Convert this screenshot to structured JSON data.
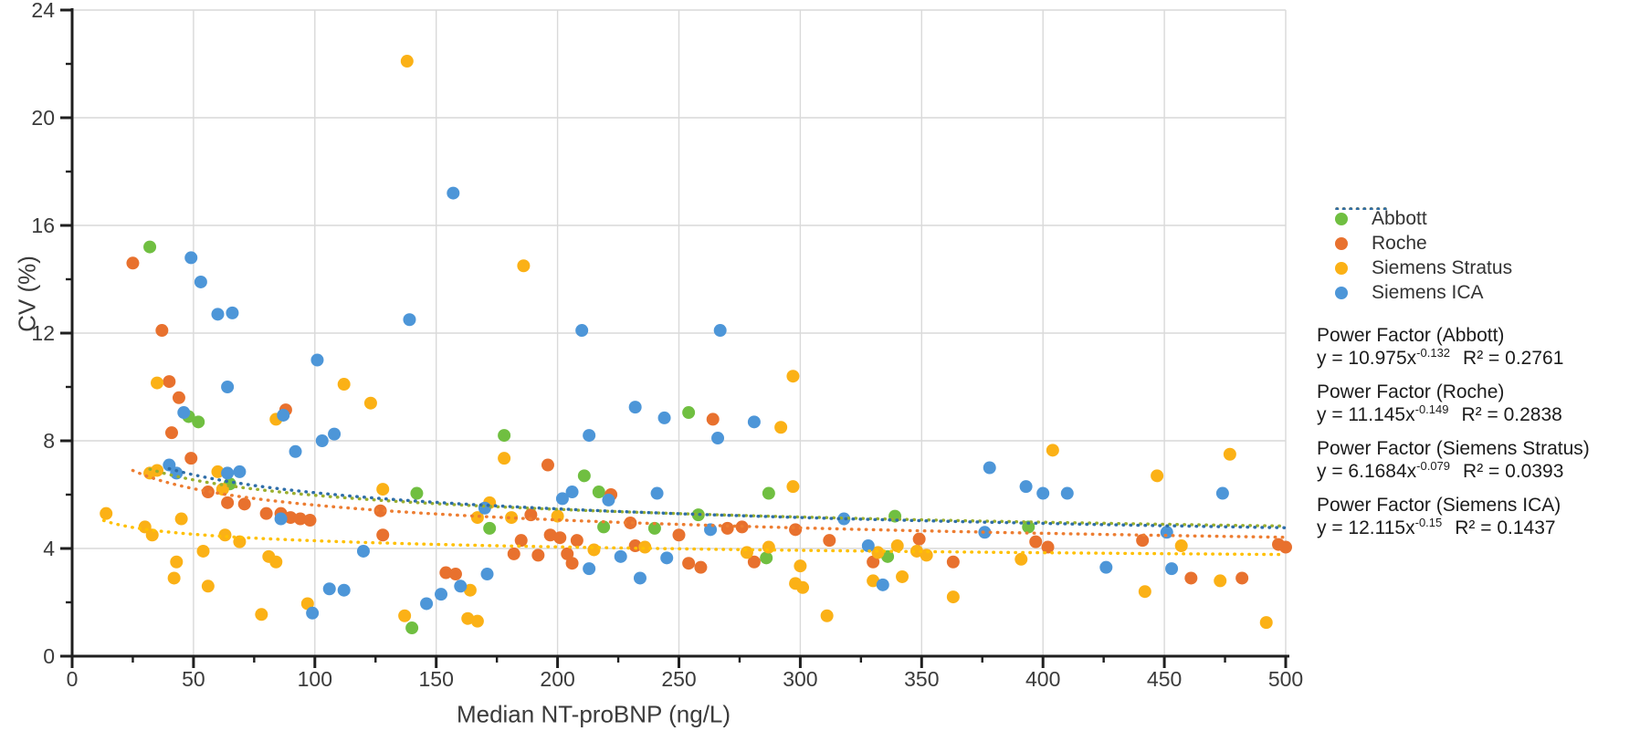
{
  "chart_data": {
    "type": "scatter",
    "title": "",
    "xlabel": "Median NT-proBNP (ng/L)",
    "ylabel": "CV (%)",
    "xlim": [
      0,
      500
    ],
    "ylim": [
      0,
      24
    ],
    "x_major_ticks": [
      0,
      50,
      100,
      150,
      200,
      250,
      300,
      350,
      400,
      450,
      500
    ],
    "x_minor_step": 25,
    "y_major_ticks": [
      0,
      4,
      8,
      12,
      16,
      20,
      24
    ],
    "y_minor_step": 2,
    "grid": true,
    "legend_position": "right",
    "colors": {
      "grid": "#d9d9d9",
      "axis": "#1f1f1f",
      "tick_text": "#3b3b3b"
    },
    "series": [
      {
        "name": "Abbott",
        "color": "#70BF41",
        "points": [
          [
            32,
            15.2
          ],
          [
            48,
            8.9
          ],
          [
            52,
            8.7
          ],
          [
            65,
            6.4
          ],
          [
            140,
            1.05
          ],
          [
            142,
            6.05
          ],
          [
            172,
            4.75
          ],
          [
            178,
            8.2
          ],
          [
            211,
            6.7
          ],
          [
            217,
            6.1
          ],
          [
            219,
            4.8
          ],
          [
            240,
            4.75
          ],
          [
            254,
            9.05
          ],
          [
            258,
            5.25
          ],
          [
            286,
            3.65
          ],
          [
            287,
            6.05
          ],
          [
            336,
            3.7
          ],
          [
            339,
            5.2
          ],
          [
            394,
            4.8
          ]
        ]
      },
      {
        "name": "Roche",
        "color": "#E8712E",
        "points": [
          [
            25,
            14.6
          ],
          [
            37,
            12.1
          ],
          [
            40,
            10.2
          ],
          [
            41,
            8.3
          ],
          [
            44,
            9.6
          ],
          [
            49,
            7.35
          ],
          [
            56,
            6.1
          ],
          [
            64,
            5.7
          ],
          [
            71,
            5.65
          ],
          [
            80,
            5.3
          ],
          [
            86,
            5.3
          ],
          [
            88,
            9.15
          ],
          [
            90,
            5.15
          ],
          [
            94,
            5.1
          ],
          [
            98,
            5.05
          ],
          [
            127,
            5.4
          ],
          [
            128,
            4.5
          ],
          [
            154,
            3.1
          ],
          [
            158,
            3.05
          ],
          [
            182,
            3.8
          ],
          [
            185,
            4.3
          ],
          [
            189,
            5.25
          ],
          [
            192,
            3.75
          ],
          [
            196,
            7.1
          ],
          [
            197,
            4.5
          ],
          [
            201,
            4.4
          ],
          [
            204,
            3.8
          ],
          [
            206,
            3.45
          ],
          [
            208,
            4.3
          ],
          [
            222,
            6.0
          ],
          [
            230,
            4.95
          ],
          [
            232,
            4.1
          ],
          [
            250,
            4.5
          ],
          [
            254,
            3.45
          ],
          [
            259,
            3.3
          ],
          [
            264,
            8.8
          ],
          [
            270,
            4.75
          ],
          [
            276,
            4.8
          ],
          [
            281,
            3.5
          ],
          [
            298,
            4.7
          ],
          [
            312,
            4.3
          ],
          [
            330,
            3.5
          ],
          [
            349,
            4.35
          ],
          [
            363,
            3.5
          ],
          [
            397,
            4.25
          ],
          [
            402,
            4.05
          ],
          [
            441,
            4.3
          ],
          [
            461,
            2.9
          ],
          [
            482,
            2.9
          ],
          [
            497,
            4.15
          ],
          [
            500,
            4.05
          ]
        ]
      },
      {
        "name": "Siemens Stratus",
        "color": "#FBB116",
        "points": [
          [
            14,
            5.3
          ],
          [
            30,
            4.8
          ],
          [
            32,
            6.8
          ],
          [
            33,
            4.5
          ],
          [
            35,
            6.9
          ],
          [
            35,
            10.15
          ],
          [
            42,
            2.9
          ],
          [
            43,
            3.5
          ],
          [
            45,
            5.1
          ],
          [
            54,
            3.9
          ],
          [
            56,
            2.6
          ],
          [
            60,
            6.85
          ],
          [
            62,
            6.2
          ],
          [
            63,
            4.5
          ],
          [
            69,
            4.25
          ],
          [
            78,
            1.55
          ],
          [
            81,
            3.7
          ],
          [
            84,
            3.5
          ],
          [
            84,
            8.8
          ],
          [
            97,
            1.95
          ],
          [
            112,
            10.1
          ],
          [
            123,
            9.4
          ],
          [
            128,
            6.2
          ],
          [
            137,
            1.5
          ],
          [
            138,
            22.1
          ],
          [
            163,
            1.4
          ],
          [
            164,
            2.45
          ],
          [
            167,
            1.3
          ],
          [
            167,
            5.15
          ],
          [
            172,
            5.7
          ],
          [
            178,
            7.35
          ],
          [
            181,
            5.15
          ],
          [
            186,
            14.5
          ],
          [
            200,
            5.2
          ],
          [
            215,
            3.95
          ],
          [
            236,
            4.05
          ],
          [
            278,
            3.85
          ],
          [
            287,
            4.05
          ],
          [
            292,
            8.5
          ],
          [
            297,
            6.3
          ],
          [
            297,
            10.4
          ],
          [
            298,
            2.7
          ],
          [
            300,
            3.35
          ],
          [
            301,
            2.55
          ],
          [
            311,
            1.5
          ],
          [
            330,
            2.8
          ],
          [
            332,
            3.85
          ],
          [
            340,
            4.1
          ],
          [
            342,
            2.95
          ],
          [
            348,
            3.9
          ],
          [
            352,
            3.75
          ],
          [
            363,
            2.2
          ],
          [
            391,
            3.6
          ],
          [
            404,
            7.65
          ],
          [
            442,
            2.4
          ],
          [
            447,
            6.7
          ],
          [
            457,
            4.1
          ],
          [
            473,
            2.8
          ],
          [
            477,
            7.5
          ],
          [
            492,
            1.25
          ]
        ]
      },
      {
        "name": "Siemens ICA",
        "color": "#4D96D8",
        "points": [
          [
            40,
            7.1
          ],
          [
            43,
            6.8
          ],
          [
            46,
            9.05
          ],
          [
            49,
            14.8
          ],
          [
            53,
            13.9
          ],
          [
            60,
            12.7
          ],
          [
            64,
            6.8
          ],
          [
            64,
            10.0
          ],
          [
            66,
            12.75
          ],
          [
            69,
            6.85
          ],
          [
            86,
            5.1
          ],
          [
            87,
            8.95
          ],
          [
            92,
            7.6
          ],
          [
            99,
            1.6
          ],
          [
            101,
            11.0
          ],
          [
            103,
            8.0
          ],
          [
            106,
            2.5
          ],
          [
            108,
            8.25
          ],
          [
            112,
            2.45
          ],
          [
            120,
            3.9
          ],
          [
            139,
            12.5
          ],
          [
            146,
            1.95
          ],
          [
            152,
            2.3
          ],
          [
            157,
            17.2
          ],
          [
            160,
            2.6
          ],
          [
            170,
            5.5
          ],
          [
            171,
            3.05
          ],
          [
            202,
            5.85
          ],
          [
            206,
            6.1
          ],
          [
            210,
            12.1
          ],
          [
            213,
            3.25
          ],
          [
            213,
            8.2
          ],
          [
            221,
            5.8
          ],
          [
            226,
            3.7
          ],
          [
            232,
            9.25
          ],
          [
            234,
            2.9
          ],
          [
            241,
            6.05
          ],
          [
            244,
            8.85
          ],
          [
            245,
            3.65
          ],
          [
            263,
            4.7
          ],
          [
            266,
            8.1
          ],
          [
            267,
            12.1
          ],
          [
            281,
            8.7
          ],
          [
            318,
            5.1
          ],
          [
            328,
            4.1
          ],
          [
            334,
            2.65
          ],
          [
            376,
            4.6
          ],
          [
            378,
            7.0
          ],
          [
            393,
            6.3
          ],
          [
            400,
            6.05
          ],
          [
            410,
            6.05
          ],
          [
            426,
            3.3
          ],
          [
            451,
            4.6
          ],
          [
            453,
            3.25
          ],
          [
            474,
            6.05
          ]
        ]
      }
    ],
    "trendlines": [
      {
        "name": "Power Factor (Abbott)",
        "series": "Abbott",
        "color": "#9AAF2E",
        "a": 10.975,
        "b": -0.132,
        "x_start": 32,
        "x_end": 500,
        "equation": {
          "prefix": "y = 10.975x",
          "exponent": "-0.132",
          "r2": "R² = 0.2761"
        }
      },
      {
        "name": "Power Factor (Roche)",
        "series": "Roche",
        "color": "#ED7D31",
        "a": 11.145,
        "b": -0.149,
        "x_start": 25,
        "x_end": 500,
        "equation": {
          "prefix": "y = 11.145x",
          "exponent": "-0.149",
          "r2": "R² = 0.2838"
        }
      },
      {
        "name": "Power Factor (Siemens Stratus)",
        "series": "Siemens Stratus",
        "color": "#FFC000",
        "a": 6.1684,
        "b": -0.079,
        "x_start": 13,
        "x_end": 500,
        "equation": {
          "prefix": "y = 6.1684x",
          "exponent": "-0.079",
          "r2": "R² = 0.0393"
        }
      },
      {
        "name": "Power Factor (Siemens ICA)",
        "series": "Siemens ICA",
        "color": "#2E6DA8",
        "a": 12.115,
        "b": -0.15,
        "x_start": 40,
        "x_end": 500,
        "equation": {
          "prefix": "y = 12.115x",
          "exponent": "-0.15",
          "r2": "R² = 0.1437"
        }
      }
    ]
  }
}
